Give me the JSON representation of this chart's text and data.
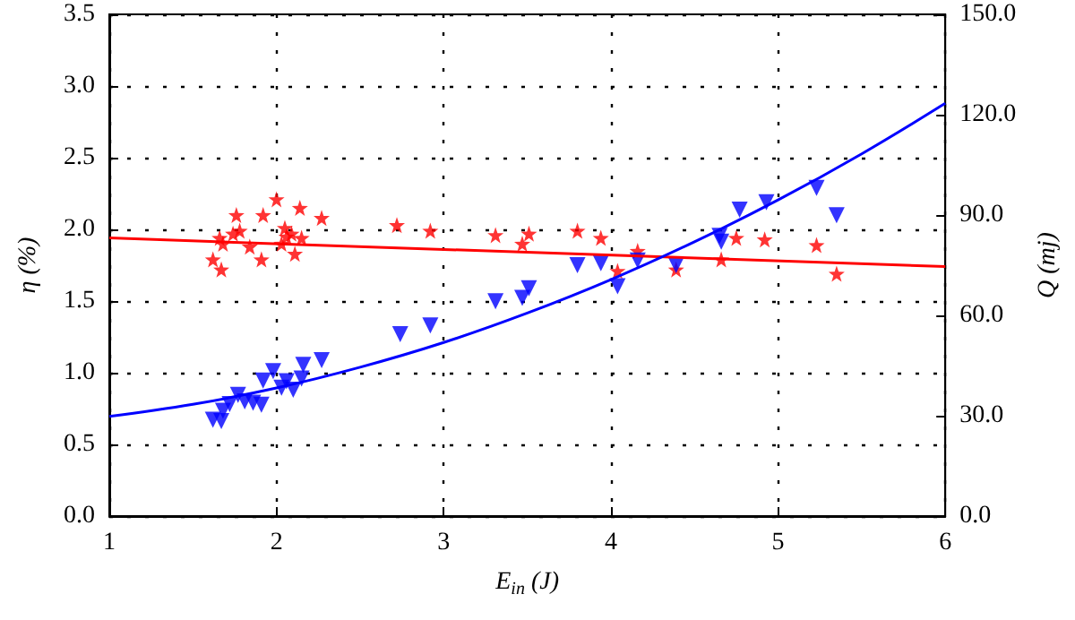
{
  "chart_data": {
    "type": "scatter",
    "xlabel": "E$_{in}$ (J)",
    "ylabel": "η (%)",
    "y2label": "Q (mj)",
    "xlim": [
      1,
      6
    ],
    "xticks": [
      1,
      2,
      3,
      4,
      5,
      6
    ],
    "ylim": [
      0,
      3.5
    ],
    "yticks": [
      {
        "value": 0,
        "label": "0.0"
      },
      {
        "value": 0.5,
        "label": "0.5"
      },
      {
        "value": 1,
        "label": "1.0"
      },
      {
        "value": 1.5,
        "label": "1.5"
      },
      {
        "value": 2,
        "label": "2.0"
      },
      {
        "value": 2.5,
        "label": "2.5"
      },
      {
        "value": 3,
        "label": "3.0"
      },
      {
        "value": 3.5,
        "label": "3.5"
      }
    ],
    "y2lim": [
      0,
      150
    ],
    "y2ticks": [
      {
        "value": 0,
        "label": "0.0"
      },
      {
        "value": 30,
        "label": "30.0"
      },
      {
        "value": 60,
        "label": "60.0"
      },
      {
        "value": 90,
        "label": "90.0"
      },
      {
        "value": 120,
        "label": "120.0"
      },
      {
        "value": 150,
        "label": "150.0"
      }
    ],
    "grid": true,
    "series": [
      {
        "color": "#ff0000",
        "marker": "star",
        "x": [
          1.62,
          1.66,
          1.67,
          1.68,
          1.74,
          1.76,
          1.78,
          1.84,
          1.91,
          1.92,
          2.0,
          2.03,
          2.05,
          2.06,
          2.09,
          2.11,
          2.14,
          2.15,
          2.27,
          2.72,
          2.92,
          3.31,
          3.47,
          3.51,
          3.8,
          3.94,
          4.04,
          4.16,
          4.39,
          4.66,
          4.75,
          4.92,
          5.23,
          5.35
        ],
        "values": [
          1.79,
          1.94,
          1.72,
          1.9,
          1.97,
          2.1,
          1.99,
          1.88,
          1.79,
          2.1,
          2.21,
          1.9,
          2.01,
          1.95,
          1.97,
          1.83,
          2.15,
          1.94,
          2.08,
          2.03,
          1.99,
          1.96,
          1.9,
          1.97,
          1.99,
          1.94,
          1.71,
          1.85,
          1.72,
          1.79,
          1.94,
          1.93,
          1.89,
          1.69
        ]
      },
      {
        "color": "#0000ff",
        "marker": "triangle",
        "axis": "y2",
        "x": [
          1.62,
          1.67,
          1.68,
          1.72,
          1.77,
          1.81,
          1.86,
          1.91,
          1.92,
          1.98,
          2.03,
          2.06,
          2.1,
          2.15,
          2.16,
          2.27,
          2.74,
          2.92,
          3.31,
          3.47,
          3.51,
          3.8,
          3.94,
          4.04,
          4.16,
          4.39,
          4.65,
          4.66,
          4.77,
          4.93,
          5.23,
          5.35
        ],
        "values": [
          28.8,
          28.4,
          31.5,
          33.5,
          36.2,
          34.3,
          33.9,
          33.3,
          40.5,
          43.3,
          38.4,
          40.3,
          37.8,
          41.1,
          45.2,
          46.6,
          54.4,
          57.0,
          64.2,
          65.2,
          68.1,
          75.0,
          75.6,
          68.7,
          76.4,
          75.0,
          83.8,
          82.0,
          91.6,
          93.8,
          98.1,
          89.9
        ]
      },
      {
        "type": "line",
        "color": "#ff0000",
        "marker": "none",
        "x": [
          1,
          6
        ],
        "values": [
          1.94,
          1.74
        ]
      },
      {
        "type": "line",
        "color": "#0000ff",
        "marker": "none",
        "axis": "y2",
        "x": [
          1,
          1.5,
          2,
          2.5,
          3,
          3.5,
          4,
          4.5,
          5,
          5.5,
          6
        ],
        "values": [
          29.8,
          33.4,
          38.3,
          44.5,
          51.9,
          60.7,
          70.7,
          82.0,
          94.5,
          108.3,
          123.4
        ]
      }
    ]
  }
}
